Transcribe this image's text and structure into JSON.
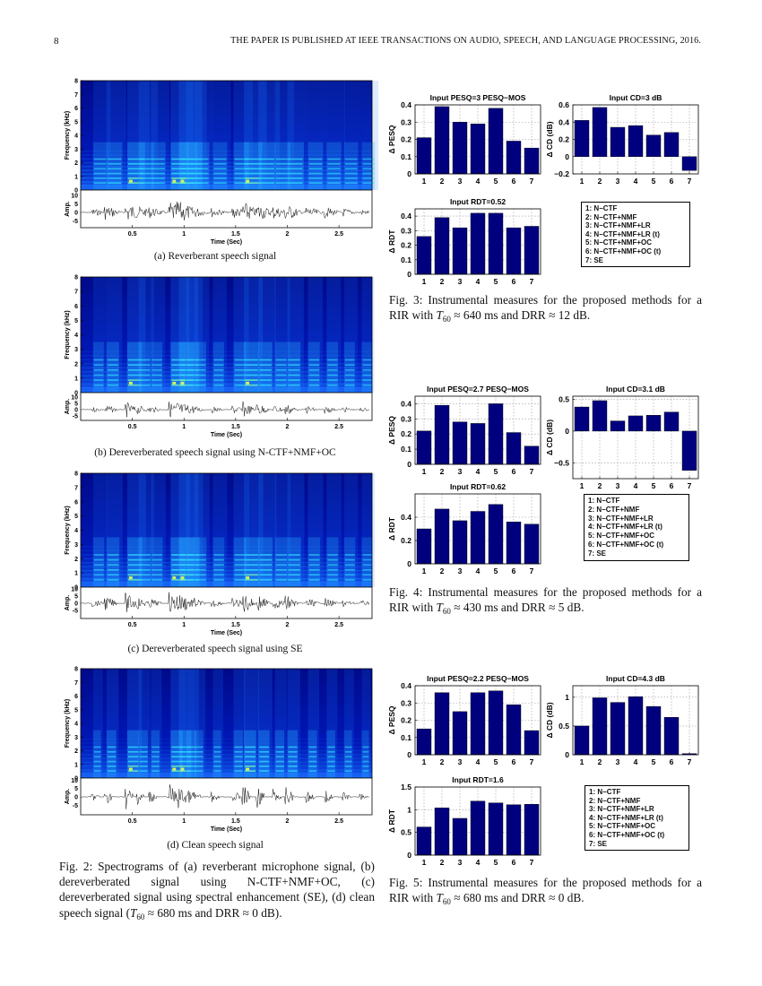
{
  "header": {
    "page_number": "8",
    "title": "THE PAPER IS PUBLISHED AT IEEE TRANSACTIONS ON AUDIO, SPEECH, AND LANGUAGE PROCESSING, 2016."
  },
  "fig2": {
    "spec_ylabel": "Frequency (kHz)",
    "spec_yticks": [
      "0",
      "1",
      "2",
      "3",
      "4",
      "5",
      "6",
      "7",
      "8"
    ],
    "amp_ylabel": "Amp.",
    "amp_yticks": [
      "10",
      "5",
      "0",
      "-5"
    ],
    "time_xlabel": "Time (Sec)",
    "time_xticks": [
      "0.5",
      "1",
      "1.5",
      "2",
      "2.5"
    ],
    "panels": [
      {
        "caption": "(a) Reverberant speech signal"
      },
      {
        "caption": "(b) Dereverberated speech signal using N-CTF+NMF+OC"
      },
      {
        "caption": "(c) Dereverberated speech signal using SE"
      },
      {
        "caption": "(d) Clean speech signal"
      }
    ],
    "caption": {
      "label": "Fig. 2:",
      "text": "Spectrograms of (a) reverberant microphone signal, (b) dereverberated signal using N-CTF+NMF+OC, (c) dereverberated signal using spectral enhancement (SE), (d) clean speech signal (",
      "t60": "T",
      "t60_sub": "60",
      "tail": " ≈ 680 ms and DRR ≈ 0 dB)."
    }
  },
  "legend": [
    "1: N−CTF",
    "2: N−CTF+NMF",
    "3: N−CTF+NMF+LR",
    "4: N−CTF+NMF+LR (t)",
    "5: N−CTF+NMF+OC",
    "6: N−CTF+NMF+OC (t)",
    "7: SE"
  ],
  "captions": {
    "fig3": {
      "label": "Fig. 3:",
      "text": "Instrumental measures for the proposed methods for a RIR with ",
      "t": "T",
      "sub": "60",
      "tail": " ≈ 640 ms and DRR ≈ 12 dB."
    },
    "fig4": {
      "label": "Fig. 4:",
      "text": "Instrumental measures for the proposed methods for a RIR with ",
      "t": "T",
      "sub": "60",
      "tail": " ≈ 430 ms and DRR ≈ 5 dB."
    },
    "fig5": {
      "label": "Fig. 5:",
      "text": "Instrumental measures for the proposed methods for a RIR with ",
      "t": "T",
      "sub": "60",
      "tail": " ≈ 680 ms and DRR ≈ 0 dB."
    }
  },
  "chart_data": [
    {
      "figure": "3",
      "type": "bar",
      "title": "Input PESQ=3 PESQ−MOS",
      "ylabel": "Δ PESQ",
      "categories": [
        "1",
        "2",
        "3",
        "4",
        "5",
        "6",
        "7"
      ],
      "values": [
        0.21,
        0.39,
        0.3,
        0.29,
        0.38,
        0.19,
        0.15
      ],
      "ylim": [
        0,
        0.4
      ],
      "yticks": [
        0,
        0.1,
        0.2,
        0.3,
        0.4
      ],
      "grid": true
    },
    {
      "figure": "3",
      "type": "bar",
      "title": "Input CD=3 dB",
      "ylabel": "Δ CD (dB)",
      "categories": [
        "1",
        "2",
        "3",
        "4",
        "5",
        "6",
        "7"
      ],
      "values": [
        0.42,
        0.57,
        0.34,
        0.36,
        0.25,
        0.28,
        -0.16
      ],
      "ylim": [
        -0.2,
        0.6
      ],
      "yticks": [
        -0.2,
        0,
        0.2,
        0.4,
        0.6
      ],
      "grid": true
    },
    {
      "figure": "3",
      "type": "bar",
      "title": "Input RDT=0.52",
      "ylabel": "Δ RDT",
      "categories": [
        "1",
        "2",
        "3",
        "4",
        "5",
        "6",
        "7"
      ],
      "values": [
        0.26,
        0.39,
        0.32,
        0.42,
        0.42,
        0.32,
        0.33
      ],
      "ylim": [
        0,
        0.45
      ],
      "yticks": [
        0,
        0.1,
        0.2,
        0.3,
        0.4
      ],
      "grid": true
    },
    {
      "figure": "4",
      "type": "bar",
      "title": "Input PESQ=2.7 PESQ−MOS",
      "ylabel": "Δ PESQ",
      "categories": [
        "1",
        "2",
        "3",
        "4",
        "5",
        "6",
        "7"
      ],
      "values": [
        0.22,
        0.39,
        0.28,
        0.27,
        0.4,
        0.21,
        0.12
      ],
      "ylim": [
        0,
        0.45
      ],
      "yticks": [
        0,
        0.1,
        0.2,
        0.3,
        0.4
      ],
      "grid": true
    },
    {
      "figure": "4",
      "type": "bar",
      "title": "Input CD=3.1 dB",
      "ylabel": "Δ CD (dB)",
      "categories": [
        "1",
        "2",
        "3",
        "4",
        "5",
        "6",
        "7"
      ],
      "values": [
        0.38,
        0.48,
        0.16,
        0.24,
        0.25,
        0.3,
        -0.62
      ],
      "ylim": [
        -0.75,
        0.55
      ],
      "yticks": [
        -0.5,
        0,
        0.5
      ],
      "grid": true
    },
    {
      "figure": "4",
      "type": "bar",
      "title": "Input RDT=0.62",
      "ylabel": "Δ RDT",
      "categories": [
        "1",
        "2",
        "3",
        "4",
        "5",
        "6",
        "7"
      ],
      "values": [
        0.3,
        0.47,
        0.37,
        0.45,
        0.51,
        0.36,
        0.34
      ],
      "ylim": [
        0,
        0.6
      ],
      "yticks": [
        0,
        0.2,
        0.4
      ],
      "grid": true
    },
    {
      "figure": "5",
      "type": "bar",
      "title": "Input PESQ=2.2 PESQ−MOS",
      "ylabel": "Δ PESQ",
      "categories": [
        "1",
        "2",
        "3",
        "4",
        "5",
        "6",
        "7"
      ],
      "values": [
        0.15,
        0.36,
        0.25,
        0.36,
        0.37,
        0.29,
        0.14
      ],
      "ylim": [
        0,
        0.4
      ],
      "yticks": [
        0,
        0.1,
        0.2,
        0.3,
        0.4
      ],
      "grid": true
    },
    {
      "figure": "5",
      "type": "bar",
      "title": "Input CD=4.3 dB",
      "ylabel": "Δ CD (dB)",
      "categories": [
        "1",
        "2",
        "3",
        "4",
        "5",
        "6",
        "7"
      ],
      "values": [
        0.5,
        0.99,
        0.91,
        1.01,
        0.84,
        0.65,
        0.02
      ],
      "ylim": [
        0,
        1.2
      ],
      "yticks": [
        0,
        0.5,
        1
      ],
      "grid": true
    },
    {
      "figure": "5",
      "type": "bar",
      "title": "Input RDT=1.6",
      "ylabel": "Δ RDT",
      "categories": [
        "1",
        "2",
        "3",
        "4",
        "5",
        "6",
        "7"
      ],
      "values": [
        0.62,
        1.04,
        0.81,
        1.19,
        1.15,
        1.11,
        1.12
      ],
      "ylim": [
        0,
        1.5
      ],
      "yticks": [
        0,
        0.5,
        1,
        1.5
      ],
      "grid": true
    }
  ],
  "colors": {
    "bar": "#00007f",
    "grid": "#9a9a9a"
  }
}
